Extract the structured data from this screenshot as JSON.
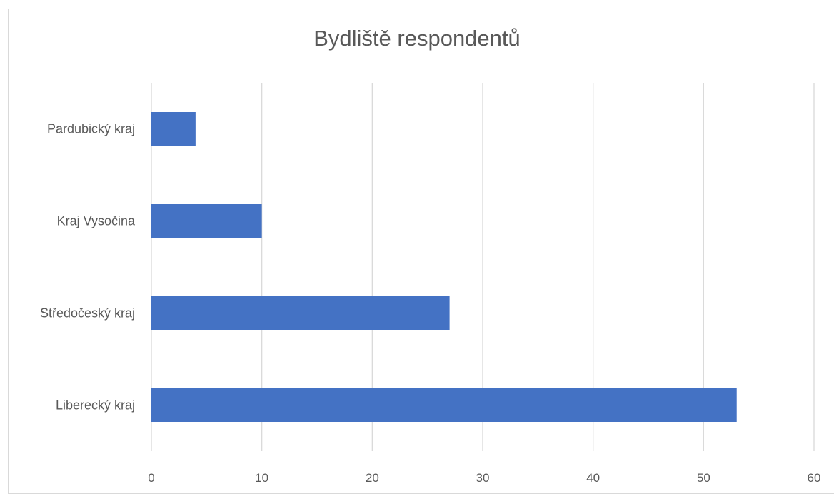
{
  "chart_data": {
    "type": "bar",
    "orientation": "horizontal",
    "title": "Bydliště respondentů",
    "categories": [
      "Pardubický kraj",
      "Kraj Vysočina",
      "Středočeský kraj",
      "Liberecký kraj"
    ],
    "values": [
      4,
      10,
      27,
      53
    ],
    "xlim": [
      0,
      60
    ],
    "x_ticks": [
      "0",
      "10",
      "20",
      "30",
      "40",
      "50",
      "60"
    ],
    "xlabel": "",
    "ylabel": "",
    "grid": "vertical",
    "legend": "none",
    "bar_color": "#4472c4",
    "grid_color": "#d9d9d9"
  }
}
